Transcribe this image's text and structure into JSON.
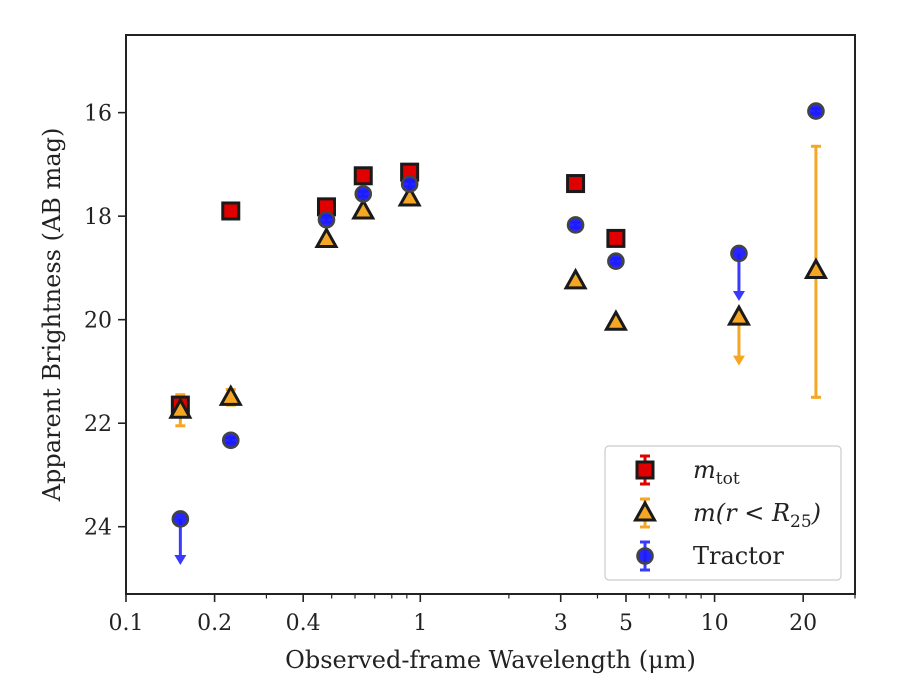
{
  "chart_data": {
    "type": "scatter",
    "xlabel": "Observed-frame Wavelength (μm)",
    "ylabel": "Apparent Brightness (AB mag)",
    "xscale": "log",
    "xlim": [
      0.1,
      30
    ],
    "ylim": [
      25.3,
      14.5
    ],
    "y_inverted": true,
    "xticks": [
      0.1,
      0.2,
      0.4,
      1,
      3,
      5,
      10,
      20
    ],
    "xtick_labels": [
      "0.1",
      "0.2",
      "0.4",
      "1",
      "3",
      "5",
      "10",
      "20"
    ],
    "yticks": [
      16,
      18,
      20,
      22,
      24
    ],
    "ytick_labels": [
      "16",
      "18",
      "20",
      "22",
      "24"
    ],
    "grid": false,
    "legend_position": "lower right",
    "series": [
      {
        "name": "m_tot",
        "label_main": "m",
        "label_sub": "tot",
        "marker": "square",
        "fill": "#e00000",
        "errcolor": "#e00000",
        "points": [
          {
            "x": 0.153,
            "y": 21.65,
            "err": 0.08
          },
          {
            "x": 0.227,
            "y": 17.9,
            "err": 0.05
          },
          {
            "x": 0.48,
            "y": 17.82,
            "err": 0.05
          },
          {
            "x": 0.64,
            "y": 17.22,
            "err": 0.05
          },
          {
            "x": 0.92,
            "y": 17.15,
            "err": 0.05
          },
          {
            "x": 3.37,
            "y": 17.37,
            "err": 0.05
          },
          {
            "x": 4.62,
            "y": 18.43,
            "err": 0.05
          }
        ]
      },
      {
        "name": "m(r < R25)",
        "label_main": "m(r < R",
        "label_sub": "25",
        "label_end": ")",
        "marker": "triangle",
        "fill": "#f5a623",
        "errcolor": "#f5a623",
        "points": [
          {
            "x": 0.153,
            "y": 21.75,
            "err": 0.3
          },
          {
            "x": 0.227,
            "y": 21.5,
            "err": 0.15
          },
          {
            "x": 0.48,
            "y": 18.45,
            "err": 0.05
          },
          {
            "x": 0.64,
            "y": 17.9,
            "err": 0.05
          },
          {
            "x": 0.92,
            "y": 17.65,
            "err": 0.05
          },
          {
            "x": 3.37,
            "y": 19.25,
            "err": 0.05
          },
          {
            "x": 4.62,
            "y": 20.05,
            "err": 0.05
          },
          {
            "x": 12.1,
            "y": 19.95,
            "upper_limit_to": 20.85
          },
          {
            "x": 22.1,
            "y": 19.05,
            "err_lo": 16.65,
            "err_hi": 21.5
          }
        ]
      },
      {
        "name": "Tractor",
        "label_main": "Tractor",
        "marker": "circle",
        "fill": "#1a1aff",
        "errcolor": "#3a3aff",
        "points": [
          {
            "x": 0.153,
            "y": 23.85,
            "upper_limit_to": 24.7
          },
          {
            "x": 0.227,
            "y": 22.33,
            "err": 0.05
          },
          {
            "x": 0.48,
            "y": 18.07,
            "err": 0.05
          },
          {
            "x": 0.64,
            "y": 17.57,
            "err": 0.05
          },
          {
            "x": 0.92,
            "y": 17.38,
            "err": 0.05
          },
          {
            "x": 3.37,
            "y": 18.17,
            "err": 0.05
          },
          {
            "x": 4.62,
            "y": 18.87,
            "err": 0.05
          },
          {
            "x": 12.1,
            "y": 18.72,
            "upper_limit_to": 19.6
          },
          {
            "x": 22.1,
            "y": 15.97,
            "err": 0.05
          }
        ]
      }
    ]
  }
}
